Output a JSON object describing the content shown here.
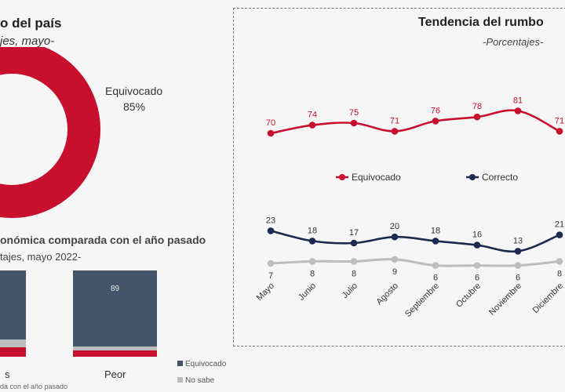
{
  "left": {
    "title": "o del país",
    "subtitle": "jes, mayo-",
    "donut_label": "Equivocado",
    "donut_value": "85%",
    "donut_fraction": 0.85,
    "section2_title": "onómica comparada con el año pasado",
    "section2_subtitle": "tajes, mayo 2022-",
    "bar_left_label": "s",
    "bar_right_label": "Peor",
    "bar_right_value": "89",
    "legend": [
      "Equivocado",
      "No sabe"
    ],
    "footnote": "da con el año pasado"
  },
  "right": {
    "title": "Tendencia del rumbo",
    "subtitle": "-Porcentajes-",
    "legend": [
      "Equivocado",
      "Correcto"
    ]
  },
  "colors": {
    "red": "#c8102e",
    "navy": "#1c2a4f",
    "gray": "#bdbdbd",
    "slate": "#44546a"
  },
  "chart_data": {
    "type": "line",
    "title": "Tendencia del rumbo",
    "subtitle": "-Porcentajes-",
    "categories": [
      "Mayo",
      "Junio",
      "Julio",
      "Agosto",
      "Septiembre",
      "Octubre",
      "Noviembre",
      "Diciembre"
    ],
    "series": [
      {
        "name": "Equivocado",
        "color": "#c8102e",
        "values": [
          70,
          74,
          75,
          71,
          76,
          78,
          81,
          71
        ]
      },
      {
        "name": "Correcto",
        "color": "#1c2a4f",
        "values": [
          23,
          18,
          17,
          20,
          18,
          16,
          13,
          21
        ]
      },
      {
        "name": "",
        "color": "#bdbdbd",
        "values": [
          7,
          8,
          8,
          9,
          6,
          6,
          6,
          8
        ]
      }
    ],
    "legend_position": "middle",
    "grid": false
  }
}
